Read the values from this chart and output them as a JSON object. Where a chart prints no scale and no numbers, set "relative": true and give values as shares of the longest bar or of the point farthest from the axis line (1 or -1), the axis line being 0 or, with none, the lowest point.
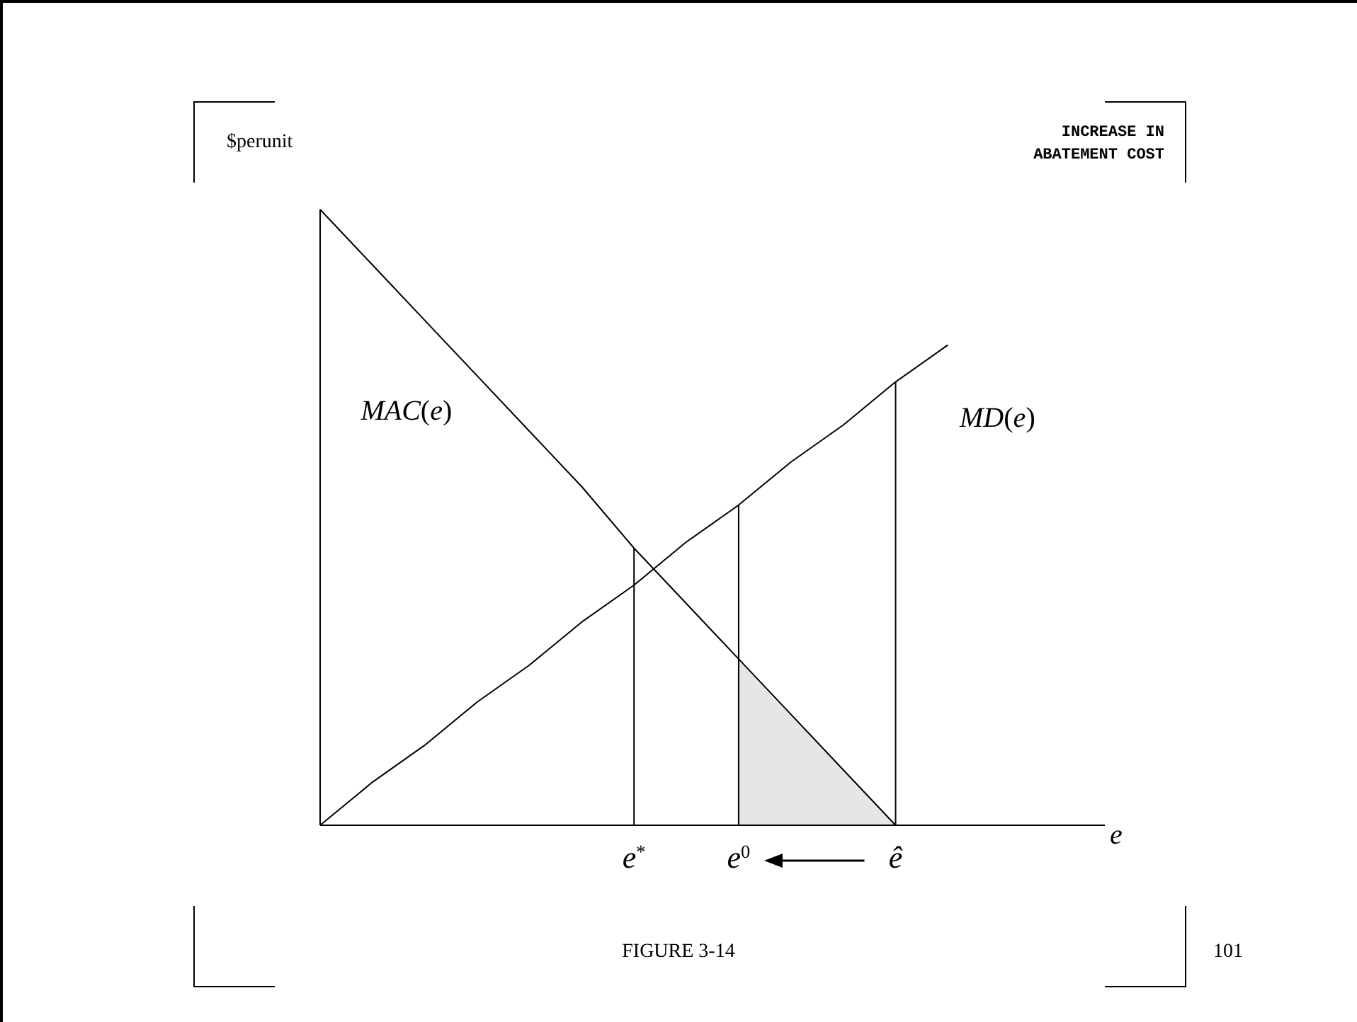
{
  "chart_data": {
    "type": "line",
    "relative": true,
    "ylabel": "$perunit",
    "xlabel": "e",
    "categories": [
      null,
      null,
      null,
      null,
      null,
      null,
      "e$^{*}$",
      null,
      "e$^{0}$",
      null,
      null,
      "ê",
      null,
      null,
      null
    ],
    "annotations": [
      "INCREASE IN\nABATEMENT COST",
      "FIGURE 3-14",
      "101"
    ],
    "line_style": "solid",
    "series": [
      {
        "type": "area",
        "color": "#e6e6e6",
        "values": [
          null,
          null,
          null,
          null,
          null,
          null,
          null,
          null,
          0.27,
          0.18,
          0.09,
          0,
          null,
          null,
          null
        ]
      },
      {
        "name": "MAC(e)",
        "color": "#000000",
        "values": [
          1,
          0.91,
          0.82,
          0.73,
          0.64,
          0.55,
          0.45,
          0.36,
          0.27,
          0.18,
          0.09,
          0,
          null,
          null,
          null
        ]
      },
      {
        "name": "MD(e)",
        "color": "#000000",
        "values": [
          0,
          0.07,
          0.13,
          0.2,
          0.26,
          0.33,
          0.39,
          0.46,
          0.52,
          0.59,
          0.65,
          0.72,
          0.78,
          null,
          null
        ]
      }
    ],
    "ref_lines": [
      {
        "axis": "x",
        "value": "e$^{*}$",
        "color": "#000000"
      },
      {
        "axis": "x",
        "value": "e$^{0}$",
        "color": "#000000"
      },
      {
        "axis": "x",
        "value": "ê",
        "color": "#000000"
      }
    ]
  }
}
